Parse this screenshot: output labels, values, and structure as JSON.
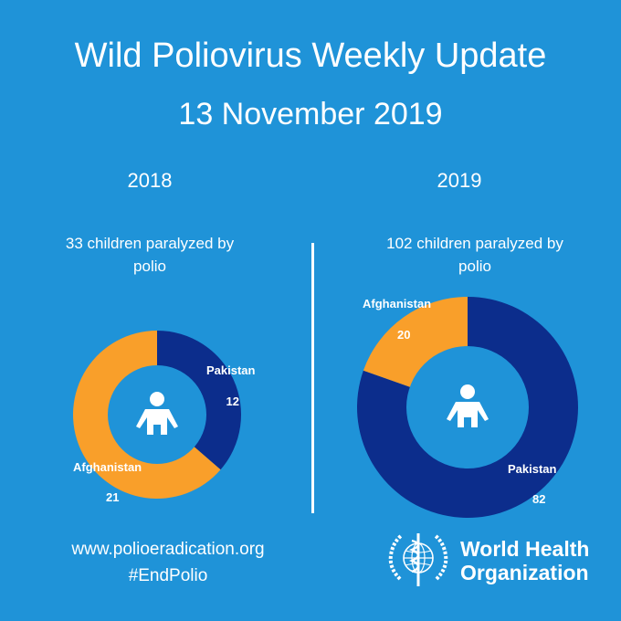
{
  "header": {
    "title": "Wild Poliovirus Weekly Update",
    "date": "13 November 2019"
  },
  "panels": [
    {
      "year": "2018",
      "subtitle_line1": "33 children paralyzed by",
      "subtitle_line2": "polio"
    },
    {
      "year": "2019",
      "subtitle_line1": "102 children paralyzed by",
      "subtitle_line2": "polio"
    }
  ],
  "footer": {
    "url": "www.polioeradication.org",
    "hashtag": "#EndPolio",
    "org_line1": "World Health",
    "org_line2": "Organization"
  },
  "colors": {
    "background": "#1f93d8",
    "pakistan": "#0c2d8c",
    "afghanistan": "#f99f2a",
    "inner": "#1f93d8",
    "text": "#ffffff"
  },
  "icons": {
    "center": "child-icon",
    "logo": "who-emblem-icon"
  },
  "chart_data": [
    {
      "type": "pie",
      "title": "2018",
      "subtitle": "33 children paralyzed by polio",
      "categories": [
        "Pakistan",
        "Afghanistan"
      ],
      "values": [
        12,
        21
      ]
    },
    {
      "type": "pie",
      "title": "2019",
      "subtitle": "102 children paralyzed by polio",
      "categories": [
        "Pakistan",
        "Afghanistan"
      ],
      "values": [
        82,
        20
      ]
    }
  ]
}
